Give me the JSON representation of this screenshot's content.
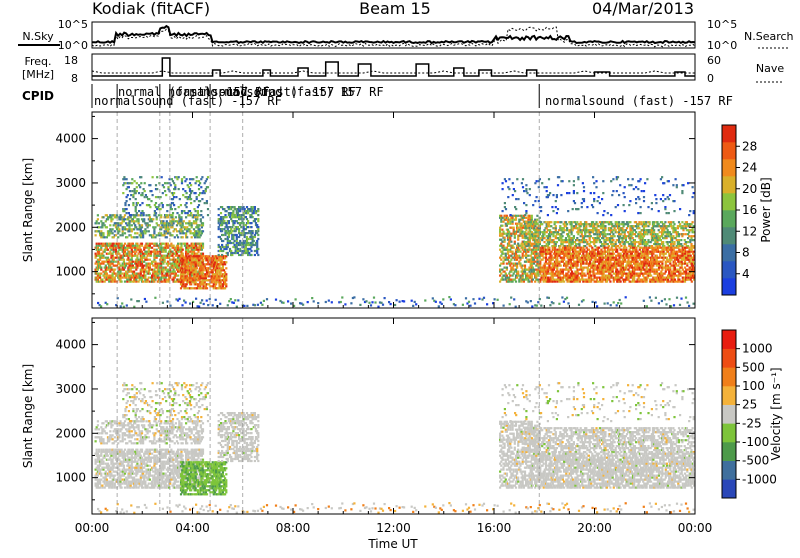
{
  "header": {
    "station": "Kodiak (fitACF)",
    "beam": "Beam 15",
    "date": "04/Mar/2013"
  },
  "left_labels": {
    "nsky": "N.Sky",
    "freq": "Freq.",
    "freq_unit": "[MHz]",
    "cpid": "CPID"
  },
  "right_labels": {
    "nsearch": "N.Search",
    "nave": "Nave"
  },
  "noise_axis": {
    "top": "10^5",
    "bottom": "10^0"
  },
  "freq_axis": {
    "top": "18",
    "bottom": "8"
  },
  "nave_axis": {
    "top": "60",
    "bottom": "0"
  },
  "cpid_labels": [
    "normalsound (fast) -157 RF",
    "normal (fast) -157 RF",
    "normalsound (fast) -157 RF",
    "normalsound (fast) 157 RF",
    "normalsound (fast) -157 RF"
  ],
  "x_axis": {
    "title": "Time UT",
    "ticks": [
      "00:00",
      "04:00",
      "08:00",
      "12:00",
      "16:00",
      "20:00",
      "00:00"
    ]
  },
  "chart_data": [
    {
      "type": "heatmap",
      "name": "power-panel",
      "ylabel": "Slant Range [km]",
      "y_ticks": [
        1000,
        2000,
        3000,
        4000
      ],
      "ylim": [
        180,
        4600
      ],
      "xlim_hours": [
        0,
        24
      ],
      "colorbar": {
        "label": "Power [dB]",
        "ticks": [
          "4",
          "8",
          "12",
          "16",
          "20",
          "24",
          "28"
        ],
        "colors": [
          "#1b3fe0",
          "#2a57c2",
          "#3b6ea4",
          "#4f8a76",
          "#5aa85c",
          "#8cc43d",
          "#d9b02a",
          "#f08a1d",
          "#ee5a14",
          "#e02b10"
        ]
      },
      "cpid_change_hours": [
        1.0,
        2.7,
        3.1,
        4.7,
        6.0,
        17.8
      ]
    },
    {
      "type": "heatmap",
      "name": "velocity-panel",
      "ylabel": "Slant Range [km]",
      "y_ticks": [
        1000,
        2000,
        3000,
        4000
      ],
      "ylim": [
        180,
        4600
      ],
      "xlim_hours": [
        0,
        24
      ],
      "colorbar": {
        "label": "Velocity [m s⁻¹]",
        "ticks": [
          "1000",
          "500",
          "100",
          "25",
          "-25",
          "-100",
          "-500",
          "-1000"
        ],
        "colors": [
          "#2a47b8",
          "#3f6f9d",
          "#4d9a4a",
          "#7dc43a",
          "#c8c8c4",
          "#f4b23a",
          "#f07f1a",
          "#ee4d14",
          "#e81d10"
        ]
      },
      "cpid_change_hours": [
        1.0,
        2.7,
        3.1,
        4.7,
        6.0,
        17.8
      ]
    }
  ]
}
